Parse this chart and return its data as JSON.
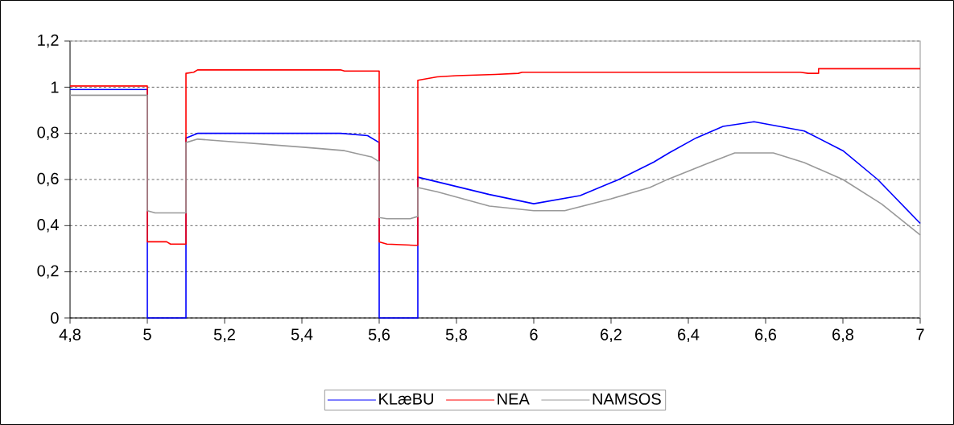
{
  "chart_data": {
    "type": "line",
    "xlim": [
      4.8,
      7
    ],
    "ylim": [
      0,
      1.2
    ],
    "xticks": [
      {
        "value": 4.8,
        "label": "4,8"
      },
      5,
      {
        "value": 5.2,
        "label": "5,2"
      },
      {
        "value": 5.4,
        "label": "5,4"
      },
      {
        "value": 5.6,
        "label": "5,6"
      },
      {
        "value": 5.8,
        "label": "5,8"
      },
      6,
      {
        "value": 6.2,
        "label": "6,2"
      },
      {
        "value": 6.4,
        "label": "6,4"
      },
      {
        "value": 6.6,
        "label": "6,6"
      },
      {
        "value": 6.8,
        "label": "6,8"
      },
      7
    ],
    "yticks": [
      0,
      {
        "value": 0.2,
        "label": "0,2"
      },
      {
        "value": 0.4,
        "label": "0,4"
      },
      {
        "value": 0.6,
        "label": "0,6"
      },
      {
        "value": 0.8,
        "label": "0,8"
      },
      1,
      {
        "value": 1.2,
        "label": "1,2"
      }
    ],
    "grid": "y",
    "legend": "bottom",
    "marker": "none",
    "line_style": "solid",
    "series": [
      {
        "name": "KLæBU",
        "color": "#0000ff",
        "x": [
          4.8,
          5.0,
          5.0,
          5.1,
          5.1,
          5.13,
          5.5,
          5.57,
          5.6,
          5.6,
          5.7,
          5.7,
          5.75,
          5.885,
          6.0,
          6.12,
          6.22,
          6.31,
          6.35,
          6.42,
          6.49,
          6.57,
          6.7,
          6.8,
          6.89,
          7.0
        ],
        "values": [
          0.99,
          0.99,
          0,
          0,
          0.78,
          0.8,
          0.8,
          0.79,
          0.76,
          0,
          0,
          0.61,
          0.59,
          0.535,
          0.495,
          0.53,
          0.6,
          0.675,
          0.715,
          0.78,
          0.83,
          0.85,
          0.81,
          0.725,
          0.6,
          0.41
        ]
      },
      {
        "name": "NEA",
        "color": "#ff0000",
        "x": [
          4.8,
          5.0,
          5.0,
          5.05,
          5.06,
          5.1,
          5.1,
          5.12,
          5.13,
          5.5,
          5.51,
          5.6,
          5.6,
          5.62,
          5.69,
          5.7,
          5.7,
          5.75,
          5.8,
          5.9,
          5.96,
          5.97,
          6.69,
          6.71,
          6.737,
          6.737,
          7.0
        ],
        "values": [
          1.005,
          1.005,
          0.33,
          0.33,
          0.32,
          0.32,
          1.06,
          1.065,
          1.075,
          1.075,
          1.07,
          1.07,
          0.33,
          0.32,
          0.315,
          0.315,
          1.03,
          1.045,
          1.05,
          1.055,
          1.06,
          1.065,
          1.065,
          1.06,
          1.06,
          1.08,
          1.08
        ]
      },
      {
        "name": "NAMSOS",
        "color": "#999999",
        "x": [
          4.8,
          5.0,
          5.0,
          5.02,
          5.1,
          5.1,
          5.13,
          5.27,
          5.41,
          5.51,
          5.58,
          5.6,
          5.6,
          5.62,
          5.68,
          5.7,
          5.7,
          5.75,
          5.885,
          6.0,
          6.08,
          6.2,
          6.3,
          6.35,
          6.45,
          6.52,
          6.62,
          6.7,
          6.8,
          6.9,
          7.0
        ],
        "values": [
          0.965,
          0.965,
          0.465,
          0.455,
          0.455,
          0.76,
          0.775,
          0.757,
          0.739,
          0.725,
          0.698,
          0.677,
          0.435,
          0.43,
          0.43,
          0.44,
          0.565,
          0.547,
          0.485,
          0.465,
          0.465,
          0.516,
          0.565,
          0.603,
          0.67,
          0.715,
          0.715,
          0.673,
          0.6,
          0.494,
          0.36
        ]
      }
    ]
  }
}
